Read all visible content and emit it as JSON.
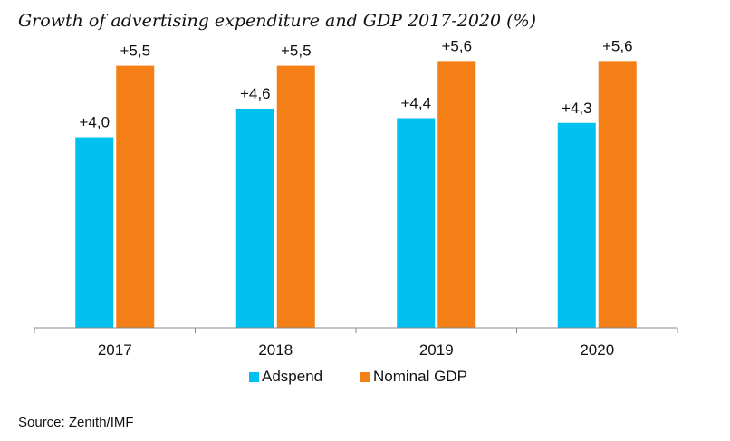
{
  "chart_data": {
    "type": "bar",
    "title": "Growth of advertising expenditure and GDP 2017-2020 (%)",
    "categories": [
      "2017",
      "2018",
      "2019",
      "2020"
    ],
    "series": [
      {
        "name": "Adspend",
        "color": "#00C0F0",
        "values": [
          4.0,
          4.6,
          4.4,
          4.3
        ],
        "labels": [
          "+4,0",
          "+4,6",
          "+4,4",
          "+4,3"
        ]
      },
      {
        "name": "Nominal GDP",
        "color": "#F57F17",
        "values": [
          5.5,
          5.5,
          5.6,
          5.6
        ],
        "labels": [
          "+5,5",
          "+5,5",
          "+5,6",
          "+5,6"
        ]
      }
    ],
    "ylim": [
      0,
      6.5
    ],
    "grid": false,
    "legend": "bottom"
  },
  "source": "Source: Zenith/IMF"
}
